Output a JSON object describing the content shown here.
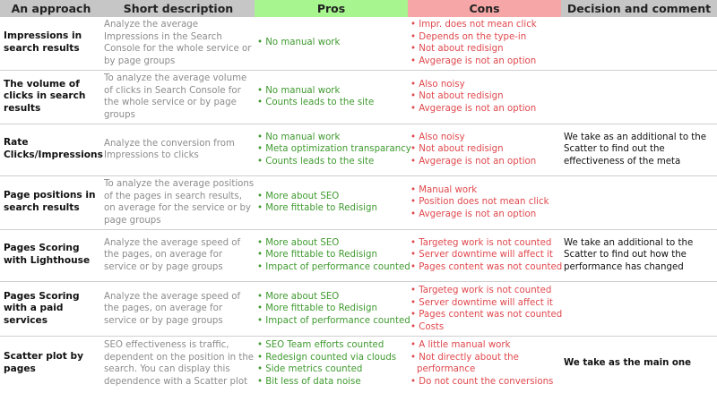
{
  "headers": {
    "approach": "An approach",
    "description": "Short description",
    "pros": "Pros",
    "cons": "Cons",
    "decision": "Decision and comment"
  },
  "rows": [
    {
      "approach": "Impressions in search results",
      "description": "Analyze the average Impressions in the Search Console for the whole service or by page groups",
      "pros": [
        "• No manual work"
      ],
      "cons": [
        "• Impr. does not mean click",
        "• Depends on the type-in",
        "• Not about redisign",
        "• Avgerage is not an option"
      ],
      "decision": ""
    },
    {
      "approach": "The volume of clicks in search results",
      "description": "To analyze the average volume of clicks in Search Console for the whole service or by page groups",
      "pros": [
        "• No manual work",
        "• Counts leads to the site"
      ],
      "cons": [
        "• Also noisy",
        "• Not about redisign",
        "• Avgerage is not an option"
      ],
      "decision": ""
    },
    {
      "approach": "Rate Clicks/Impressions",
      "description": "Analyze the conversion from Impressions to clicks",
      "pros": [
        "• No manual work",
        "• Meta optimization transparancy",
        "• Counts leads to the site"
      ],
      "cons": [
        "• Also noisy",
        "• Not about redisign",
        "• Avgerage is not an option"
      ],
      "decision": "We take as an additional to the Scatter to find out the effectiveness of the meta"
    },
    {
      "approach": "Page positions in search results",
      "description": "To analyze the average positions of the pages in search results, on average for the service or by page groups",
      "pros": [
        "• More about SEO",
        "• More fittable to Redisign"
      ],
      "cons": [
        "• Manual work",
        "• Position does not mean click",
        "• Avgerage is not an option"
      ],
      "decision": ""
    },
    {
      "approach": "Pages Scoring with Lighthouse",
      "description": "Analyze the average speed of the pages, on average for service or by page groups",
      "pros": [
        "• More about SEO",
        "• More fittable to Redisign",
        "• Impact of performance counted"
      ],
      "cons": [
        "• Targeteg work is not counted",
        "• Server downtime will affect it",
        "• Pages content was not counted"
      ],
      "decision": "We take an additional to the Scatter to find out how the performance has changed"
    },
    {
      "approach": "Pages Scoring with a paid services",
      "description": "Analyze the average speed of the pages, on average for service or by page groups",
      "pros": [
        "• More about SEO",
        "• More fittable to Redisign",
        "• Impact of performance counted"
      ],
      "cons": [
        "• Targeteg work is not counted",
        "• Server downtime will affect it",
        "• Pages content was not counted",
        "• Costs"
      ],
      "decision": ""
    },
    {
      "approach": "Scatter plot by pages",
      "description": "SEO effectiveness is traffic, dependent on the position in the search. You can display this dependence with a Scatter plot",
      "pros": [
        "• SEO Team efforts counted",
        "• Redesign counted via clouds",
        "• Side metrics counted",
        "• Bit less of data noise"
      ],
      "cons": [
        "• A little manual work",
        "• Not directly about the",
        "performance",
        "• Do not count the conversions"
      ],
      "decision": "We take as the main one"
    }
  ]
}
